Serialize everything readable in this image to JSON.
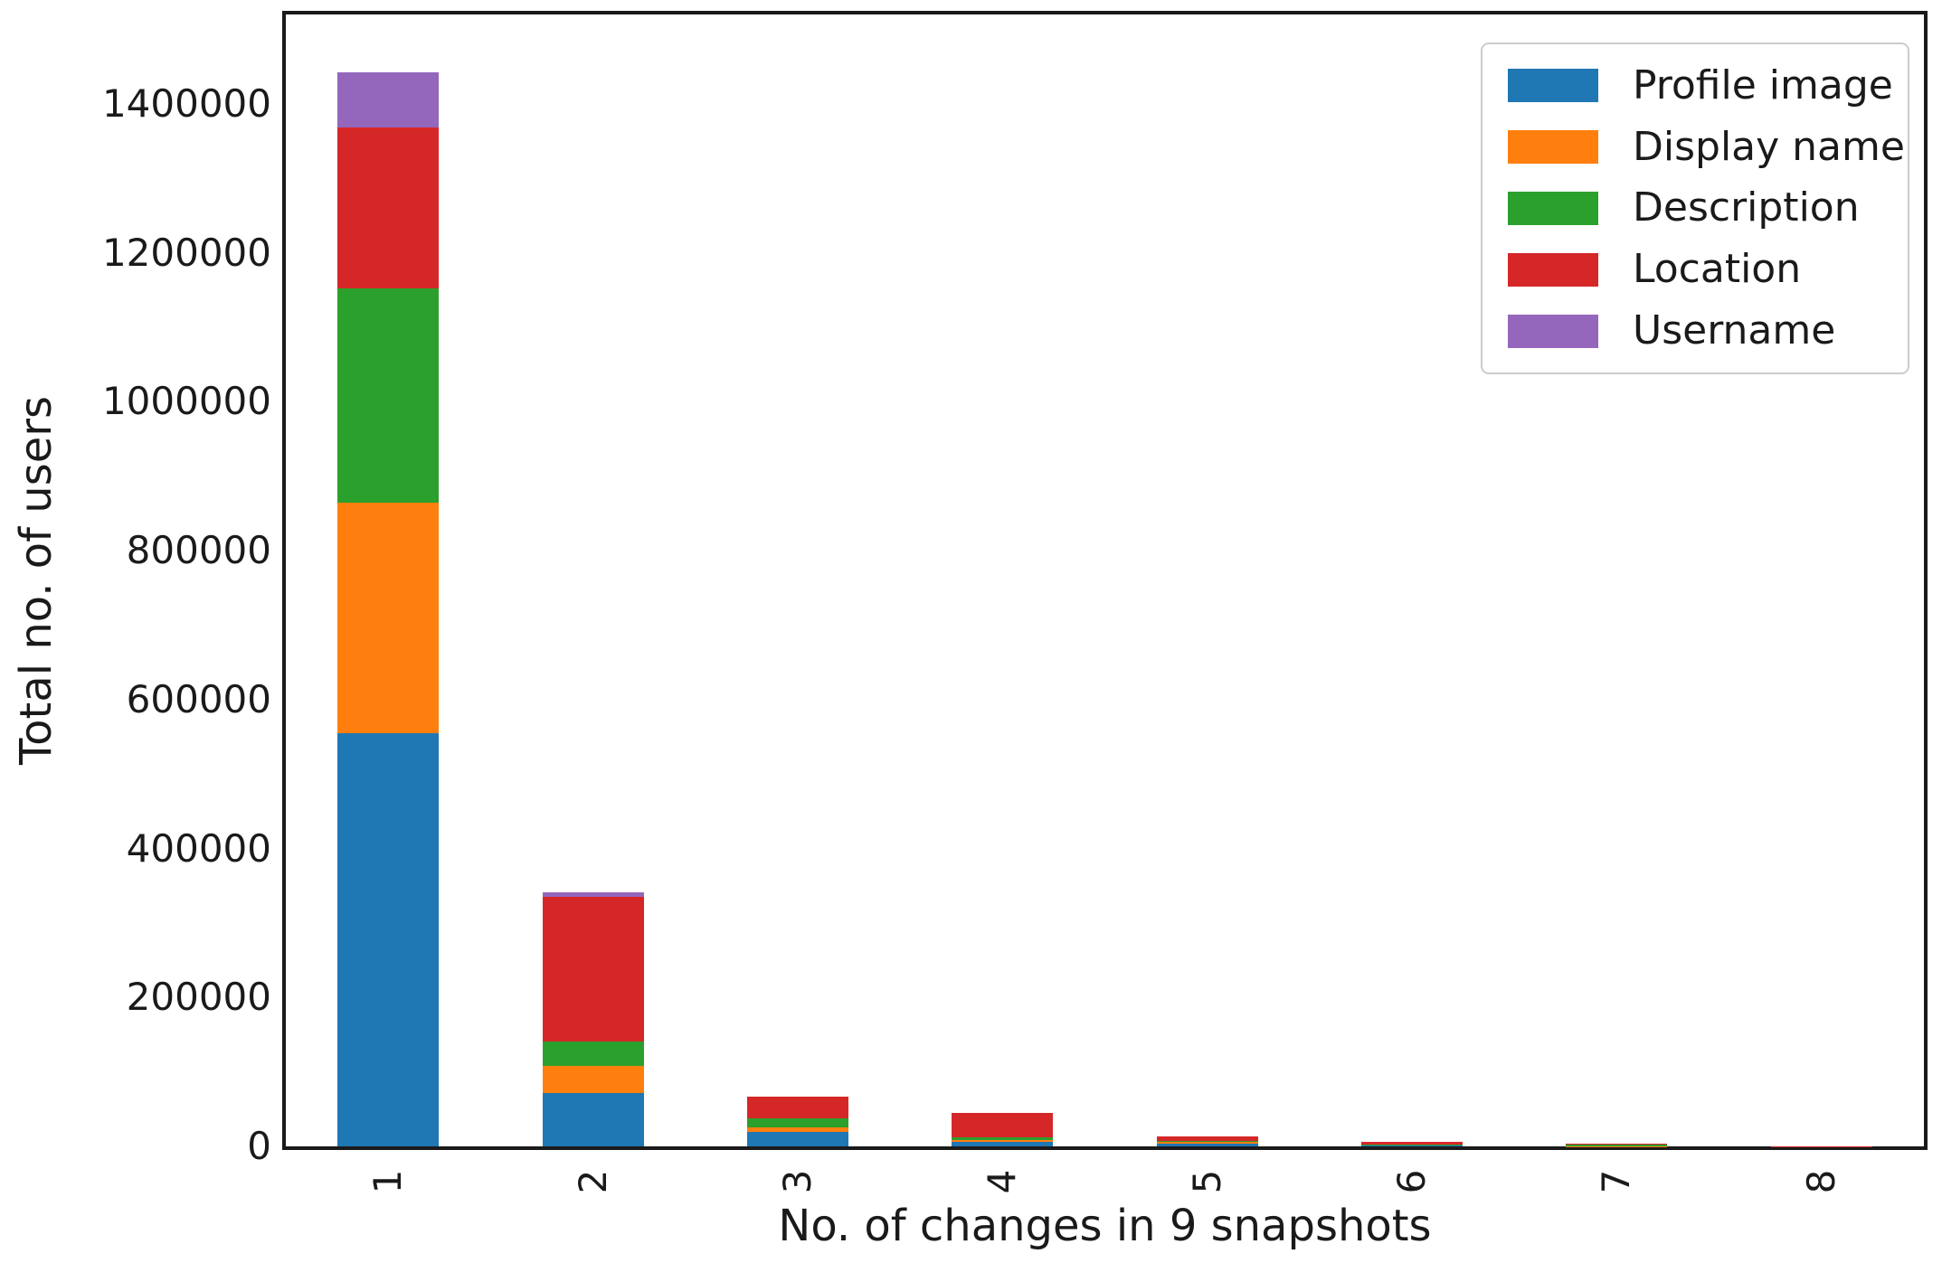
{
  "chart_data": {
    "type": "bar",
    "stacked": true,
    "title": "",
    "xlabel": "No. of changes in 9 snapshots",
    "ylabel": "Total no. of users",
    "categories": [
      "1",
      "2",
      "3",
      "4",
      "5",
      "6",
      "7",
      "8"
    ],
    "series": [
      {
        "name": "Profile image",
        "color": "#1f77b4",
        "values": [
          555000,
          72000,
          20000,
          6000,
          3500,
          1500,
          300,
          100
        ]
      },
      {
        "name": "Display name",
        "color": "#ff7f0e",
        "values": [
          310000,
          36000,
          6000,
          2000,
          2500,
          700,
          300,
          100
        ]
      },
      {
        "name": "Description",
        "color": "#2ca02c",
        "values": [
          287000,
          33000,
          12000,
          4000,
          1000,
          800,
          2500,
          100
        ]
      },
      {
        "name": "Location",
        "color": "#d62728",
        "values": [
          216000,
          194000,
          29000,
          33000,
          6000,
          3000,
          500,
          100
        ]
      },
      {
        "name": "Username",
        "color": "#9467bd",
        "values": [
          74000,
          6000,
          0,
          0,
          0,
          0,
          0,
          0
        ]
      }
    ],
    "ylim": [
      0,
      1520000
    ],
    "ytick_step": 200000,
    "ytick_labels": [
      "0",
      "200000",
      "400000",
      "600000",
      "800000",
      "1000000",
      "1200000",
      "1400000"
    ],
    "xtick_rotation_deg": 90,
    "grid": false,
    "legend_position": "upper right",
    "legend_labels": [
      "Profile image",
      "Display name",
      "Description",
      "Location",
      "Username"
    ]
  }
}
